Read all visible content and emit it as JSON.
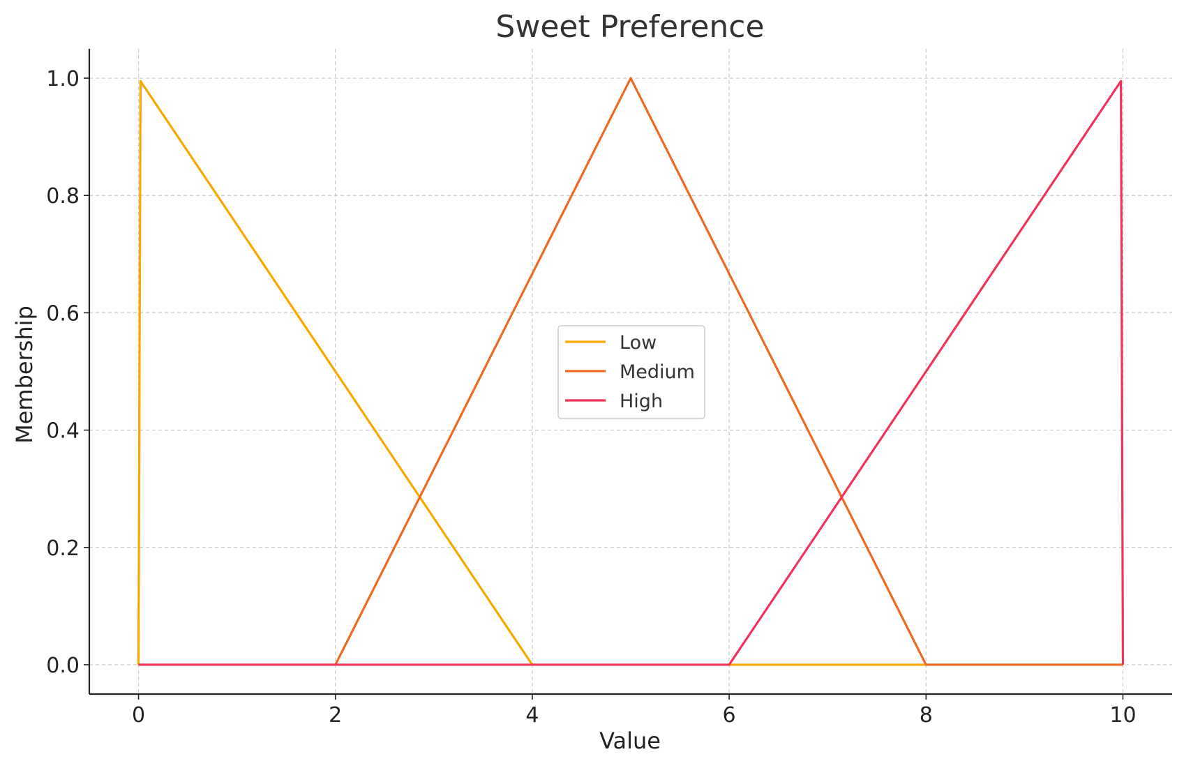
{
  "chart_data": {
    "type": "line",
    "title": "Sweet Preference",
    "xlabel": "Value",
    "ylabel": "Membership",
    "xlim": [
      -0.5,
      10.5
    ],
    "ylim": [
      -0.05,
      1.05
    ],
    "xticks": [
      0,
      2,
      4,
      6,
      8,
      10
    ],
    "xtick_labels": [
      "0",
      "2",
      "4",
      "6",
      "8",
      "10"
    ],
    "yticks": [
      0.0,
      0.2,
      0.4,
      0.6,
      0.8,
      1.0
    ],
    "ytick_labels": [
      "0.0",
      "0.2",
      "0.4",
      "0.6",
      "0.8",
      "1.0"
    ],
    "grid": true,
    "legend_position": "center",
    "series": [
      {
        "name": "Low",
        "color": "#F9A800",
        "x": [
          0,
          0.02,
          4,
          10
        ],
        "y": [
          0,
          0.995,
          0,
          0
        ]
      },
      {
        "name": "Medium",
        "color": "#EE6A24",
        "x": [
          0,
          2,
          5,
          8,
          10
        ],
        "y": [
          0,
          0,
          1.0,
          0,
          0
        ]
      },
      {
        "name": "High",
        "color": "#EE3458",
        "x": [
          0,
          6,
          9.98,
          10
        ],
        "y": [
          0,
          0,
          0.995,
          0
        ]
      }
    ]
  }
}
